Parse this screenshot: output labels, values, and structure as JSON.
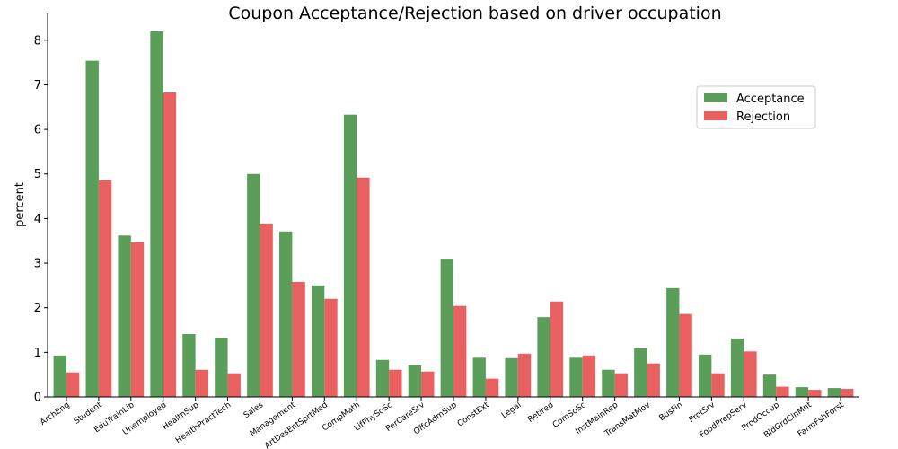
{
  "chart_data": {
    "type": "bar",
    "title": "Coupon Acceptance/Rejection based on driver occupation",
    "xlabel": "",
    "ylabel": "percent",
    "ylim": [
      0,
      8.6
    ],
    "yticks": [
      0,
      1,
      2,
      3,
      4,
      5,
      6,
      7,
      8
    ],
    "legend_position": "upper-right",
    "grid": false,
    "categories": [
      "ArchEng",
      "Student",
      "EduTrainLib",
      "Unemployed",
      "HealthSup",
      "HealthPractTech",
      "Sales",
      "Management",
      "ArtDesEntSprtMed",
      "CompMath",
      "LifPhySoSc",
      "PerCareSrv",
      "OffcAdmSup",
      "ConstExt",
      "Legal",
      "Retired",
      "ComSoSc",
      "InstMainRep",
      "TransMatMov",
      "BusFin",
      "ProtSrv",
      "FoodPrepServ",
      "ProdOccup",
      "BldGrdClnMnt",
      "FarmFshForst"
    ],
    "series": [
      {
        "name": "Acceptance",
        "color": "#5a9e5a",
        "values": [
          0.93,
          7.54,
          3.62,
          8.2,
          1.41,
          1.33,
          5.0,
          3.71,
          2.5,
          6.33,
          0.83,
          0.71,
          3.1,
          0.88,
          0.87,
          1.79,
          0.88,
          0.61,
          1.09,
          2.44,
          0.95,
          1.31,
          0.5,
          0.22,
          0.2
        ]
      },
      {
        "name": "Rejection",
        "color": "#e86060",
        "values": [
          0.55,
          4.86,
          3.47,
          6.83,
          0.61,
          0.53,
          3.89,
          2.58,
          2.2,
          4.92,
          0.61,
          0.57,
          2.04,
          0.41,
          0.97,
          2.14,
          0.93,
          0.53,
          0.75,
          1.86,
          0.53,
          1.02,
          0.23,
          0.16,
          0.18
        ]
      }
    ]
  }
}
